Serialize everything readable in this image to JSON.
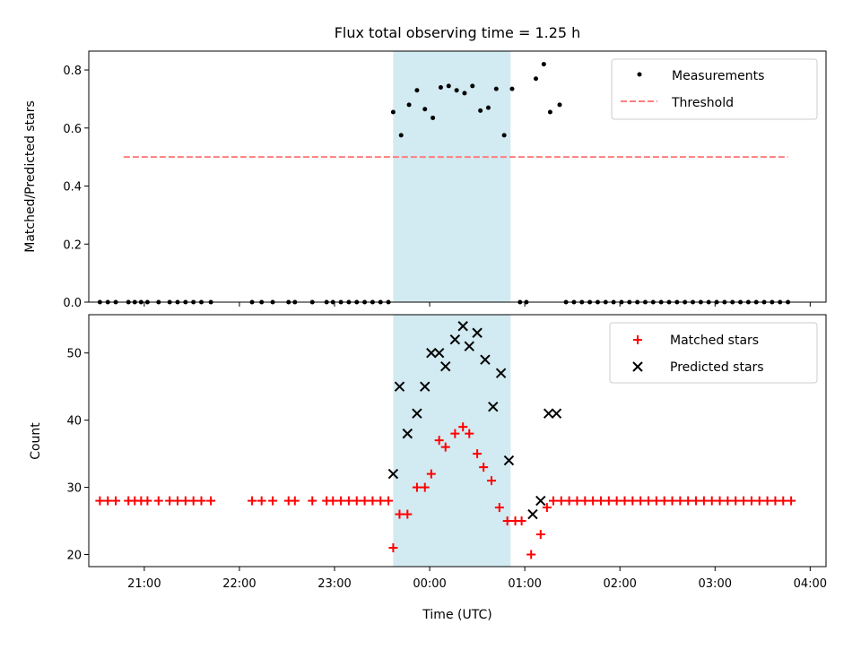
{
  "chart_data": [
    {
      "type": "scatter",
      "title": "Flux total observing time = 1.25 h",
      "xlabel": "",
      "ylabel": "Matched/Predicted stars",
      "xlim": [
        "20:25",
        "04:10"
      ],
      "ylim": [
        0,
        0.865
      ],
      "yticks": [
        "0.0",
        "0.2",
        "0.4",
        "0.6",
        "0.8"
      ],
      "grid": false,
      "legend": "upper right",
      "highlight_span": {
        "start": "23:37",
        "end": "00:51",
        "color": "#add8e6"
      },
      "series": [
        {
          "name": "Measurements",
          "marker": "dot",
          "color": "#000000",
          "points": [
            [
              "20:32",
              0
            ],
            [
              "20:37",
              0
            ],
            [
              "20:42",
              0
            ],
            [
              "20:50",
              0
            ],
            [
              "20:54",
              0
            ],
            [
              "20:58",
              0
            ],
            [
              "21:02",
              0
            ],
            [
              "21:09",
              0
            ],
            [
              "21:16",
              0
            ],
            [
              "21:21",
              0
            ],
            [
              "21:26",
              0
            ],
            [
              "21:31",
              0
            ],
            [
              "21:36",
              0
            ],
            [
              "21:42",
              0
            ],
            [
              "22:08",
              0
            ],
            [
              "22:14",
              0
            ],
            [
              "22:21",
              0
            ],
            [
              "22:31",
              0
            ],
            [
              "22:35",
              0
            ],
            [
              "22:46",
              0
            ],
            [
              "22:55",
              0
            ],
            [
              "22:59",
              0
            ],
            [
              "23:04",
              0
            ],
            [
              "23:09",
              0
            ],
            [
              "23:14",
              0
            ],
            [
              "23:19",
              0
            ],
            [
              "23:24",
              0
            ],
            [
              "23:29",
              0
            ],
            [
              "23:34",
              0
            ],
            [
              "23:37",
              0.655
            ],
            [
              "23:42",
              0.575
            ],
            [
              "23:47",
              0.68
            ],
            [
              "23:52",
              0.73
            ],
            [
              "23:57",
              0.665
            ],
            [
              "00:02",
              0.635
            ],
            [
              "00:07",
              0.74
            ],
            [
              "00:12",
              0.745
            ],
            [
              "00:17",
              0.73
            ],
            [
              "00:22",
              0.72
            ],
            [
              "00:27",
              0.745
            ],
            [
              "00:32",
              0.66
            ],
            [
              "00:37",
              0.67
            ],
            [
              "00:42",
              0.735
            ],
            [
              "00:47",
              0.575
            ],
            [
              "00:52",
              0.735
            ],
            [
              "00:57",
              0
            ],
            [
              "01:01",
              0
            ],
            [
              "01:07",
              0.77
            ],
            [
              "01:12",
              0.82
            ],
            [
              "01:16",
              0.655
            ],
            [
              "01:22",
              0.68
            ],
            [
              "01:26",
              0
            ],
            [
              "01:31",
              0
            ],
            [
              "01:36",
              0
            ],
            [
              "01:41",
              0
            ],
            [
              "01:46",
              0
            ],
            [
              "01:51",
              0
            ],
            [
              "01:56",
              0
            ],
            [
              "02:01",
              0
            ],
            [
              "02:06",
              0
            ],
            [
              "02:11",
              0
            ],
            [
              "02:16",
              0
            ],
            [
              "02:21",
              0
            ],
            [
              "02:26",
              0
            ],
            [
              "02:31",
              0
            ],
            [
              "02:36",
              0
            ],
            [
              "02:41",
              0
            ],
            [
              "02:46",
              0
            ],
            [
              "02:51",
              0
            ],
            [
              "02:56",
              0
            ],
            [
              "03:01",
              0
            ],
            [
              "03:06",
              0
            ],
            [
              "03:11",
              0
            ],
            [
              "03:16",
              0
            ],
            [
              "03:21",
              0
            ],
            [
              "03:26",
              0
            ],
            [
              "03:31",
              0
            ],
            [
              "03:36",
              0
            ],
            [
              "03:41",
              0
            ],
            [
              "03:46",
              0
            ]
          ]
        },
        {
          "name": "Threshold",
          "marker": "dashed-line",
          "color": "#ff7f7f",
          "points": [
            [
              "20:47",
              0.5
            ],
            [
              "03:46",
              0.5
            ]
          ]
        }
      ]
    },
    {
      "type": "scatter",
      "title": "",
      "xlabel": "Time (UTC)",
      "ylabel": "Count",
      "xlim": [
        "20:25",
        "04:10"
      ],
      "ylim": [
        18.2,
        55.7
      ],
      "yticks": [
        "20",
        "30",
        "40",
        "50"
      ],
      "xticks": [
        "21:00",
        "22:00",
        "23:00",
        "00:00",
        "01:00",
        "02:00",
        "03:00",
        "04:00"
      ],
      "grid": false,
      "legend": "upper right",
      "highlight_span": {
        "start": "23:37",
        "end": "00:51",
        "color": "#add8e6"
      },
      "series": [
        {
          "name": "Matched stars",
          "marker": "plus",
          "color": "#ff0000",
          "points": [
            [
              "20:32",
              28
            ],
            [
              "20:37",
              28
            ],
            [
              "20:42",
              28
            ],
            [
              "20:50",
              28
            ],
            [
              "20:54",
              28
            ],
            [
              "20:58",
              28
            ],
            [
              "21:02",
              28
            ],
            [
              "21:09",
              28
            ],
            [
              "21:16",
              28
            ],
            [
              "21:21",
              28
            ],
            [
              "21:26",
              28
            ],
            [
              "21:31",
              28
            ],
            [
              "21:36",
              28
            ],
            [
              "21:42",
              28
            ],
            [
              "22:08",
              28
            ],
            [
              "22:14",
              28
            ],
            [
              "22:21",
              28
            ],
            [
              "22:31",
              28
            ],
            [
              "22:35",
              28
            ],
            [
              "22:46",
              28
            ],
            [
              "22:55",
              28
            ],
            [
              "22:59",
              28
            ],
            [
              "23:04",
              28
            ],
            [
              "23:09",
              28
            ],
            [
              "23:14",
              28
            ],
            [
              "23:19",
              28
            ],
            [
              "23:24",
              28
            ],
            [
              "23:29",
              28
            ],
            [
              "23:34",
              28
            ],
            [
              "23:37",
              21
            ],
            [
              "23:41",
              26
            ],
            [
              "23:46",
              26
            ],
            [
              "23:52",
              30
            ],
            [
              "23:57",
              30
            ],
            [
              "00:01",
              32
            ],
            [
              "00:06",
              37
            ],
            [
              "00:10",
              36
            ],
            [
              "00:16",
              38
            ],
            [
              "00:21",
              39
            ],
            [
              "00:25",
              38
            ],
            [
              "00:30",
              35
            ],
            [
              "00:34",
              33
            ],
            [
              "00:39",
              31
            ],
            [
              "00:44",
              27
            ],
            [
              "00:49",
              25
            ],
            [
              "00:54",
              25
            ],
            [
              "00:58",
              25
            ],
            [
              "01:04",
              20
            ],
            [
              "01:10",
              23
            ],
            [
              "01:14",
              27
            ],
            [
              "01:18",
              28
            ],
            [
              "01:23",
              28
            ],
            [
              "01:28",
              28
            ],
            [
              "01:33",
              28
            ],
            [
              "01:38",
              28
            ],
            [
              "01:43",
              28
            ],
            [
              "01:48",
              28
            ],
            [
              "01:53",
              28
            ],
            [
              "01:58",
              28
            ],
            [
              "02:03",
              28
            ],
            [
              "02:08",
              28
            ],
            [
              "02:13",
              28
            ],
            [
              "02:18",
              28
            ],
            [
              "02:23",
              28
            ],
            [
              "02:28",
              28
            ],
            [
              "02:33",
              28
            ],
            [
              "02:38",
              28
            ],
            [
              "02:43",
              28
            ],
            [
              "02:48",
              28
            ],
            [
              "02:53",
              28
            ],
            [
              "02:58",
              28
            ],
            [
              "03:03",
              28
            ],
            [
              "03:08",
              28
            ],
            [
              "03:13",
              28
            ],
            [
              "03:18",
              28
            ],
            [
              "03:23",
              28
            ],
            [
              "03:28",
              28
            ],
            [
              "03:33",
              28
            ],
            [
              "03:38",
              28
            ],
            [
              "03:43",
              28
            ],
            [
              "03:48",
              28
            ]
          ]
        },
        {
          "name": "Predicted stars",
          "marker": "x",
          "color": "#000000",
          "points": [
            [
              "23:37",
              32
            ],
            [
              "23:41",
              45
            ],
            [
              "23:46",
              38
            ],
            [
              "23:52",
              41
            ],
            [
              "23:57",
              45
            ],
            [
              "00:01",
              50
            ],
            [
              "00:06",
              50
            ],
            [
              "00:10",
              48
            ],
            [
              "00:16",
              52
            ],
            [
              "00:21",
              54
            ],
            [
              "00:25",
              51
            ],
            [
              "00:30",
              53
            ],
            [
              "00:35",
              49
            ],
            [
              "00:40",
              42
            ],
            [
              "00:45",
              47
            ],
            [
              "00:50",
              34
            ],
            [
              "01:05",
              26
            ],
            [
              "01:10",
              28
            ],
            [
              "01:15",
              41
            ],
            [
              "01:20",
              41
            ]
          ]
        }
      ]
    }
  ]
}
